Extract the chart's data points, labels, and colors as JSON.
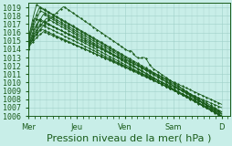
{
  "background_color": "#c8eee8",
  "plot_bg_color": "#c8eee8",
  "line_color": "#1a5c1a",
  "grid_color": "#a0d0c8",
  "xlabel": "Pression niveau de la mer( hPa )",
  "xlabel_fontsize": 8,
  "tick_fontsize": 6.0,
  "ylim": [
    1006,
    1019.5
  ],
  "yticks": [
    1006,
    1007,
    1008,
    1009,
    1010,
    1011,
    1012,
    1013,
    1014,
    1015,
    1016,
    1017,
    1018,
    1019
  ],
  "xtick_labels": [
    "Mer",
    "Jeu",
    "Ven",
    "Sam",
    "D"
  ],
  "xtick_positions": [
    0,
    48,
    96,
    144,
    192
  ],
  "xlim": [
    0,
    200
  ],
  "figsize": [
    2.55,
    1.6
  ]
}
